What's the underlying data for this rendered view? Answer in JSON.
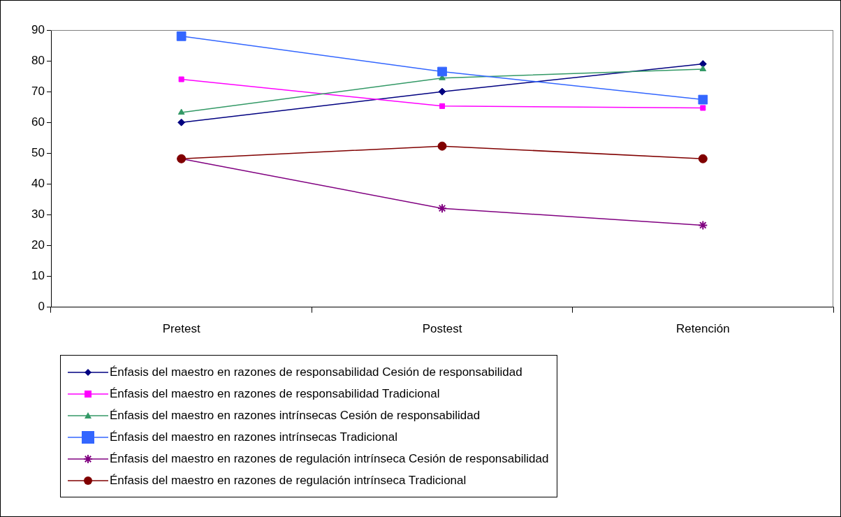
{
  "chart_data": {
    "type": "line",
    "categories": [
      "Pretest",
      "Postest",
      "Retención"
    ],
    "ylim": [
      0,
      90
    ],
    "yticks": [
      0,
      10,
      20,
      30,
      40,
      50,
      60,
      70,
      80,
      90
    ],
    "grid": false,
    "legend": "bottom",
    "line_style": "solid",
    "series": [
      {
        "name": "Énfasis del maestro en razones de responsabilidad Cesión de responsabilidad",
        "color": "#000080",
        "marker": "diamond",
        "values": [
          60,
          70,
          79
        ]
      },
      {
        "name": "Énfasis del maestro en razones de responsabilidad Tradicional",
        "color": "#ff00ff",
        "marker": "square",
        "values": [
          74,
          65.3,
          64.7
        ]
      },
      {
        "name": "Énfasis del maestro en razones intrínsecas Cesión de responsabilidad",
        "color": "#339966",
        "marker": "triangle",
        "values": [
          63.2,
          74.4,
          77.3
        ]
      },
      {
        "name": "Énfasis del maestro en razones intrínsecas Tradicional",
        "color": "#3366ff",
        "marker": "square",
        "values": [
          88,
          76.5,
          67.4
        ]
      },
      {
        "name": "Énfasis del maestro en razones de regulación intrínseca Cesión de responsabilidad",
        "color": "#800080",
        "marker": "cross",
        "values": [
          48.2,
          32.1,
          26.6
        ]
      },
      {
        "name": "Énfasis del maestro en razones de regulación intrínseca Tradicional",
        "color": "#800000",
        "marker": "circle",
        "values": [
          48.2,
          52.3,
          48.2
        ]
      }
    ]
  }
}
